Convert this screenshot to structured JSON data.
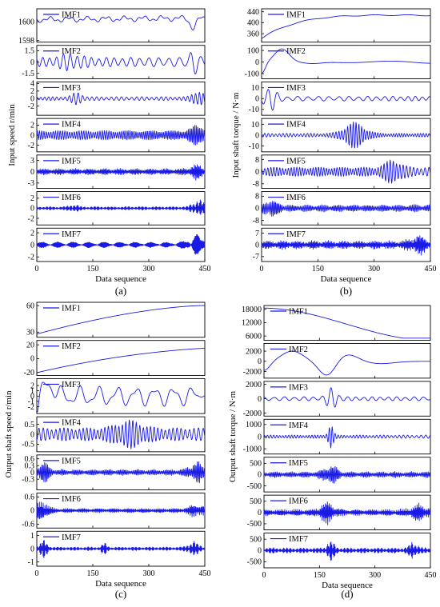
{
  "chart_data": [
    {
      "id": "a",
      "type": "line",
      "caption": "(a)",
      "ylabel": "Input speed r/min",
      "xlabel": "Data sequence",
      "xlim": [
        0,
        450
      ],
      "xticks": [
        "0",
        "150",
        "300",
        "450"
      ],
      "line_color": "#1a1ae6",
      "series": [
        {
          "name": "IMF1",
          "ylim": [
            1598,
            1601.2
          ],
          "ytick_values": [
            1600,
            1598
          ],
          "yticks": [
            "1600",
            "1598"
          ],
          "shape": {
            "kind": "drift",
            "seed": 1,
            "level": 0.72,
            "osc": 0.06,
            "cycles": 9,
            "dip_at": 0.93,
            "dip": 0.32
          }
        },
        {
          "name": "IMF2",
          "ylim": [
            -2,
            2
          ],
          "ytick_values": [
            1.5,
            0,
            -1.5
          ],
          "yticks": [
            "1.5",
            "0",
            "-1.5"
          ],
          "shape": {
            "kind": "bursty",
            "seed": 2,
            "cycles": 26,
            "base": 0.3,
            "bursts": [
              [
                0.2,
                0.08,
                0.3
              ],
              [
                0.93,
                0.03,
                0.65
              ]
            ]
          }
        },
        {
          "name": "IMF3",
          "ylim": [
            -4,
            4
          ],
          "ytick_values": [
            4,
            2,
            0,
            -2
          ],
          "yticks": [
            "4",
            "2",
            "0",
            "-2"
          ],
          "shape": {
            "kind": "bursty",
            "seed": 3,
            "cycles": 48,
            "base": 0.12,
            "bursts": [
              [
                0.24,
                0.04,
                0.3
              ],
              [
                0.96,
                0.04,
                0.45
              ]
            ]
          }
        },
        {
          "name": "IMF4",
          "ylim": [
            -3,
            3
          ],
          "ytick_values": [
            2,
            0,
            -2
          ],
          "yticks": [
            "2",
            "0",
            "-2"
          ],
          "shape": {
            "kind": "bursty",
            "seed": 4,
            "cycles": 95,
            "base": 0.3,
            "bursts": [
              [
                0.95,
                0.05,
                0.35
              ]
            ]
          }
        },
        {
          "name": "IMF5",
          "ylim": [
            -4,
            4
          ],
          "ytick_values": [
            3,
            0,
            -3
          ],
          "yticks": [
            "3",
            "0",
            "-3"
          ],
          "shape": {
            "kind": "dense",
            "seed": 5,
            "cycles": 170,
            "base": 0.22,
            "bursts": [
              [
                0.95,
                0.05,
                0.35
              ]
            ]
          }
        },
        {
          "name": "IMF6",
          "ylim": [
            -3,
            3
          ],
          "ytick_values": [
            2,
            0,
            -2
          ],
          "yticks": [
            "2",
            "0",
            "-2"
          ],
          "shape": {
            "kind": "dense",
            "seed": 6,
            "cycles": 200,
            "base": 0.12,
            "bursts": [
              [
                0.22,
                0.03,
                0.2
              ],
              [
                0.96,
                0.04,
                0.55
              ]
            ]
          }
        },
        {
          "name": "IMF7",
          "ylim": [
            -2.5,
            2.5
          ],
          "ytick_values": [
            2,
            0,
            -2
          ],
          "yticks": [
            "2",
            "0",
            "-2"
          ],
          "shape": {
            "kind": "dense",
            "seed": 7,
            "cycles": 230,
            "base": 0.2,
            "bursts": [
              [
                0.95,
                0.06,
                0.65
              ]
            ]
          }
        }
      ]
    },
    {
      "id": "b",
      "type": "line",
      "caption": "(b)",
      "ylabel": "Input shaft torque / N·m",
      "xlabel": "Data sequence",
      "xlim": [
        0,
        450
      ],
      "xticks": [
        "0",
        "150",
        "300",
        "450"
      ],
      "line_color": "#1a1ae6",
      "series": [
        {
          "name": "IMF1",
          "ylim": [
            335,
            445
          ],
          "ytick_values": [
            440,
            400,
            360
          ],
          "yticks": [
            "440",
            "400",
            "360"
          ],
          "shape": {
            "kind": "rise",
            "seed": 11,
            "from": 0.07,
            "to": 0.92,
            "rate": 4.5,
            "end": 0.84
          }
        },
        {
          "name": "IMF2",
          "ylim": [
            -130,
            130
          ],
          "ytick_values": [
            100,
            0,
            -100
          ],
          "yticks": [
            "100",
            "0",
            "-100"
          ],
          "shape": {
            "kind": "hump",
            "seed": 12
          }
        },
        {
          "name": "IMF3",
          "ylim": [
            -14,
            14
          ],
          "ytick_values": [
            10,
            0,
            -10
          ],
          "yticks": [
            "10",
            "0",
            "-10"
          ],
          "shape": {
            "kind": "bursty",
            "seed": 13,
            "cycles": 22,
            "base": 0.15,
            "bursts": [
              [
                0.05,
                0.04,
                0.8
              ]
            ]
          }
        },
        {
          "name": "IMF4",
          "ylim": [
            -14,
            14
          ],
          "ytick_values": [
            10,
            0,
            -10
          ],
          "yticks": [
            "10",
            "0",
            "-10"
          ],
          "shape": {
            "kind": "bursty",
            "seed": 14,
            "cycles": 60,
            "base": 0.12,
            "bursts": [
              [
                0.55,
                0.08,
                0.75
              ]
            ]
          }
        },
        {
          "name": "IMF5",
          "ylim": [
            -10,
            10
          ],
          "ytick_values": [
            8,
            0,
            -8
          ],
          "yticks": [
            "8",
            "0",
            "-8"
          ],
          "shape": {
            "kind": "bursty",
            "seed": 15,
            "cycles": 65,
            "base": 0.3,
            "bursts": [
              [
                0.78,
                0.06,
                0.55
              ]
            ]
          }
        },
        {
          "name": "IMF6",
          "ylim": [
            -10,
            10
          ],
          "ytick_values": [
            8,
            0,
            -8
          ],
          "yticks": [
            "8",
            "0",
            "-8"
          ],
          "shape": {
            "kind": "dense",
            "seed": 16,
            "cycles": 110,
            "base": 0.25,
            "bursts": [
              [
                0.06,
                0.05,
                0.45
              ]
            ]
          }
        },
        {
          "name": "IMF7",
          "ylim": [
            -9,
            9
          ],
          "ytick_values": [
            7,
            0,
            -7
          ],
          "yticks": [
            "7",
            "0",
            "-7"
          ],
          "shape": {
            "kind": "dense",
            "seed": 17,
            "cycles": 170,
            "base": 0.3,
            "bursts": [
              [
                0.93,
                0.05,
                0.5
              ]
            ]
          }
        }
      ]
    },
    {
      "id": "c",
      "type": "line",
      "caption": "(c)",
      "ylabel": "Output shaft speed r/min",
      "xlabel": "Data sequence",
      "xlim": [
        0,
        450
      ],
      "xticks": [
        "0",
        "150",
        "300",
        "450"
      ],
      "line_color": "#1a1ae6",
      "series": [
        {
          "name": "IMF1",
          "ylim": [
            26,
            62
          ],
          "ytick_values": [
            60,
            30
          ],
          "yticks": [
            "60",
            "30"
          ],
          "shape": {
            "kind": "scurve",
            "seed": 21
          }
        },
        {
          "name": "IMF2",
          "ylim": [
            -22,
            24
          ],
          "ytick_values": [
            20,
            0,
            -20
          ],
          "yticks": [
            "20",
            "0",
            "-20"
          ],
          "shape": {
            "kind": "lincurve",
            "seed": 22
          }
        },
        {
          "name": "IMF3",
          "ylim": [
            -3,
            3
          ],
          "ytick_values": [
            2,
            1,
            0,
            -1,
            -2
          ],
          "yticks": [
            "2",
            "1",
            "0",
            "-1",
            "-2"
          ],
          "shape": {
            "kind": "wobble",
            "seed": 23,
            "cycles": 9
          }
        },
        {
          "name": "IMF4",
          "ylim": [
            -0.8,
            0.8
          ],
          "ytick_values": [
            0.5,
            0,
            -0.5
          ],
          "yticks": [
            "0.5",
            "0",
            "-0.5"
          ],
          "shape": {
            "kind": "bursty",
            "seed": 24,
            "cycles": 48,
            "base": 0.4,
            "bursts": [
              [
                0.55,
                0.1,
                0.5
              ]
            ]
          }
        },
        {
          "name": "IMF5",
          "ylim": [
            -0.7,
            0.7
          ],
          "ytick_values": [
            0.6,
            0.3,
            0,
            -0.3
          ],
          "yticks": [
            "0.6",
            "0.3",
            "0",
            "-0.3"
          ],
          "shape": {
            "kind": "dense",
            "seed": 25,
            "cycles": 120,
            "base": 0.2,
            "bursts": [
              [
                0.04,
                0.04,
                0.6
              ],
              [
                0.95,
                0.05,
                0.55
              ]
            ]
          }
        },
        {
          "name": "IMF6",
          "ylim": [
            -0.7,
            0.7
          ],
          "ytick_values": [
            0.6,
            0,
            -0.6
          ],
          "yticks": [
            "0.6",
            "0",
            "-0.6"
          ],
          "shape": {
            "kind": "dense",
            "seed": 26,
            "cycles": 180,
            "base": 0.15,
            "bursts": [
              [
                0.03,
                0.04,
                0.7
              ],
              [
                0.95,
                0.05,
                0.35
              ]
            ]
          }
        },
        {
          "name": "IMF7",
          "ylim": [
            -1.2,
            1.2
          ],
          "ytick_values": [
            1,
            0,
            -1
          ],
          "yticks": [
            "1",
            "0",
            "-1"
          ],
          "shape": {
            "kind": "dense",
            "seed": 27,
            "cycles": 200,
            "base": 0.12,
            "bursts": [
              [
                0.04,
                0.03,
                0.5
              ],
              [
                0.4,
                0.02,
                0.3
              ],
              [
                0.93,
                0.04,
                0.4
              ]
            ]
          }
        }
      ]
    },
    {
      "id": "d",
      "type": "line",
      "caption": "(d)",
      "ylabel": "Output shaft torque / N·m",
      "xlabel": "Data sequence",
      "xlim": [
        0,
        450
      ],
      "xticks": [
        "0",
        "150",
        "300",
        "450"
      ],
      "line_color": "#1a1ae6",
      "series": [
        {
          "name": "IMF1",
          "ylim": [
            4800,
            19000
          ],
          "ytick_values": [
            18000,
            12000,
            6000
          ],
          "yticks": [
            "18000",
            "12000",
            "6000"
          ],
          "shape": {
            "kind": "fall",
            "seed": 31
          }
        },
        {
          "name": "IMF2",
          "ylim": [
            -3000,
            3200
          ],
          "ytick_values": [
            2000,
            0,
            -2000
          ],
          "yticks": [
            "2000",
            "0",
            "-2000"
          ],
          "shape": {
            "kind": "bigwave",
            "seed": 32
          }
        },
        {
          "name": "IMF3",
          "ylim": [
            -2200,
            2200
          ],
          "ytick_values": [
            2000,
            0,
            -2000
          ],
          "yticks": [
            "2000",
            "0",
            "-2000"
          ],
          "shape": {
            "kind": "bursty",
            "seed": 33,
            "cycles": 20,
            "base": 0.12,
            "bursts": [
              [
                0.41,
                0.04,
                0.6
              ]
            ]
          }
        },
        {
          "name": "IMF4",
          "ylim": [
            -1300,
            1300
          ],
          "ytick_values": [
            1000,
            0,
            -1000
          ],
          "yticks": [
            "1000",
            "0",
            "-1000"
          ],
          "shape": {
            "kind": "bursty",
            "seed": 34,
            "cycles": 60,
            "base": 0.1,
            "bursts": [
              [
                0.4,
                0.02,
                0.75
              ]
            ]
          }
        },
        {
          "name": "IMF5",
          "ylim": [
            -700,
            700
          ],
          "ytick_values": [
            500,
            0,
            -500
          ],
          "yticks": [
            "500",
            "0",
            "-500"
          ],
          "shape": {
            "kind": "dense",
            "seed": 35,
            "cycles": 120,
            "base": 0.2,
            "bursts": [
              [
                0.4,
                0.05,
                0.55
              ]
            ]
          }
        },
        {
          "name": "IMF6",
          "ylim": [
            -700,
            700
          ],
          "ytick_values": [
            500,
            0,
            -500
          ],
          "yticks": [
            "500",
            "0",
            "-500"
          ],
          "shape": {
            "kind": "dense",
            "seed": 36,
            "cycles": 180,
            "base": 0.22,
            "bursts": [
              [
                0.38,
                0.05,
                0.6
              ],
              [
                0.93,
                0.06,
                0.4
              ]
            ]
          }
        },
        {
          "name": "IMF7",
          "ylim": [
            -700,
            700
          ],
          "ytick_values": [
            500,
            0,
            -500
          ],
          "yticks": [
            "500",
            "0",
            "-500"
          ],
          "shape": {
            "kind": "dense",
            "seed": 37,
            "cycles": 200,
            "base": 0.18,
            "bursts": [
              [
                0.4,
                0.03,
                0.55
              ],
              [
                0.9,
                0.03,
                0.5
              ]
            ]
          }
        }
      ]
    }
  ]
}
